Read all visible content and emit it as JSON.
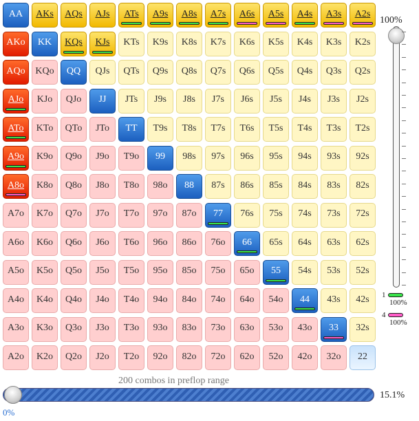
{
  "grid": {
    "rows": [
      [
        "AA",
        "AKs",
        "AQs",
        "AJs",
        "ATs",
        "A9s",
        "A8s",
        "A7s",
        "A6s",
        "A5s",
        "A4s",
        "A3s",
        "A2s"
      ],
      [
        "AKo",
        "KK",
        "KQs",
        "KJs",
        "KTs",
        "K9s",
        "K8s",
        "K7s",
        "K6s",
        "K5s",
        "K4s",
        "K3s",
        "K2s"
      ],
      [
        "AQo",
        "KQo",
        "QQ",
        "QJs",
        "QTs",
        "Q9s",
        "Q8s",
        "Q7s",
        "Q6s",
        "Q5s",
        "Q4s",
        "Q3s",
        "Q2s"
      ],
      [
        "AJo",
        "KJo",
        "QJo",
        "JJ",
        "JTs",
        "J9s",
        "J8s",
        "J7s",
        "J6s",
        "J5s",
        "J4s",
        "J3s",
        "J2s"
      ],
      [
        "ATo",
        "KTo",
        "QTo",
        "JTo",
        "TT",
        "T9s",
        "T8s",
        "T7s",
        "T6s",
        "T5s",
        "T4s",
        "T3s",
        "T2s"
      ],
      [
        "A9o",
        "K9o",
        "Q9o",
        "J9o",
        "T9o",
        "99",
        "98s",
        "97s",
        "96s",
        "95s",
        "94s",
        "93s",
        "92s"
      ],
      [
        "A8o",
        "K8o",
        "Q8o",
        "J8o",
        "T8o",
        "98o",
        "88",
        "87s",
        "86s",
        "85s",
        "84s",
        "83s",
        "82s"
      ],
      [
        "A7o",
        "K7o",
        "Q7o",
        "J7o",
        "T7o",
        "97o",
        "87o",
        "77",
        "76s",
        "75s",
        "74s",
        "73s",
        "72s"
      ],
      [
        "A6o",
        "K6o",
        "Q6o",
        "J6o",
        "T6o",
        "96o",
        "86o",
        "76o",
        "66",
        "65s",
        "64s",
        "63s",
        "62s"
      ],
      [
        "A5o",
        "K5o",
        "Q5o",
        "J5o",
        "T5o",
        "95o",
        "85o",
        "75o",
        "65o",
        "55",
        "54s",
        "53s",
        "52s"
      ],
      [
        "A4o",
        "K4o",
        "Q4o",
        "J4o",
        "T4o",
        "94o",
        "84o",
        "74o",
        "64o",
        "54o",
        "44",
        "43s",
        "42s"
      ],
      [
        "A3o",
        "K3o",
        "Q3o",
        "J3o",
        "T3o",
        "93o",
        "83o",
        "73o",
        "63o",
        "53o",
        "43o",
        "33",
        "32s"
      ],
      [
        "A2o",
        "K2o",
        "Q2o",
        "J2o",
        "T2o",
        "92o",
        "82o",
        "72o",
        "62o",
        "52o",
        "42o",
        "32o",
        "22"
      ]
    ],
    "selected": [
      "AA",
      "AKs",
      "AQs",
      "AJs",
      "ATs",
      "A9s",
      "A8s",
      "A7s",
      "A6s",
      "A5s",
      "A4s",
      "A3s",
      "A2s",
      "AKo",
      "KK",
      "KQs",
      "KJs",
      "AQo",
      "QQ",
      "AJo",
      "JJ",
      "ATo",
      "TT",
      "A9o",
      "99",
      "A8o",
      "88",
      "77",
      "66",
      "55",
      "44",
      "33"
    ],
    "marks": {
      "ATs": [
        "green"
      ],
      "A9s": [
        "green"
      ],
      "A8s": [
        "green"
      ],
      "A7s": [
        "green"
      ],
      "A6s": [
        "magenta"
      ],
      "A5s": [
        "magenta"
      ],
      "A4s": [
        "green"
      ],
      "A3s": [
        "magenta"
      ],
      "A2s": [
        "magenta"
      ],
      "KQs": [
        "green"
      ],
      "KJs": [
        "green"
      ],
      "AJo": [
        "green"
      ],
      "ATo": [
        "green"
      ],
      "A9o": [
        "green"
      ],
      "A8o": [
        "magenta"
      ],
      "77": [
        "green"
      ],
      "66": [
        "green"
      ],
      "55": [
        "green"
      ],
      "44": [
        "green"
      ],
      "33": [
        "magenta"
      ]
    },
    "underlined": [
      "AKs",
      "AQs",
      "AJs",
      "ATs",
      "A9s",
      "A8s",
      "A7s",
      "A6s",
      "A5s",
      "A4s",
      "A3s",
      "A2s",
      "KQs",
      "KJs",
      "AJo",
      "ATo",
      "A9o",
      "A8o"
    ],
    "selected_light": [
      "22"
    ]
  },
  "colors": {
    "suited": "#fff6c4",
    "offsuit": "#ffcfcf",
    "pair": "#dceefe",
    "selected_suited": "#f2b900",
    "selected_offsuit": "#e21b00",
    "selected_pair": "#1c5fbf",
    "mark_green": "#39e34a",
    "mark_magenta": "#ff5cc8",
    "percent_text": "#2a6fd1"
  },
  "vertical_slider": {
    "label": "100%",
    "value_fraction": 1.0
  },
  "legend": [
    {
      "number": "1",
      "color": "#39e34a",
      "percent": "100%"
    },
    {
      "number": "4",
      "color": "#ff5cc8",
      "percent": "100%"
    }
  ],
  "range": {
    "caption": "200 combos in preflop range",
    "percent": "15.1%",
    "min_label": "0%",
    "value_fraction": 0.151
  }
}
